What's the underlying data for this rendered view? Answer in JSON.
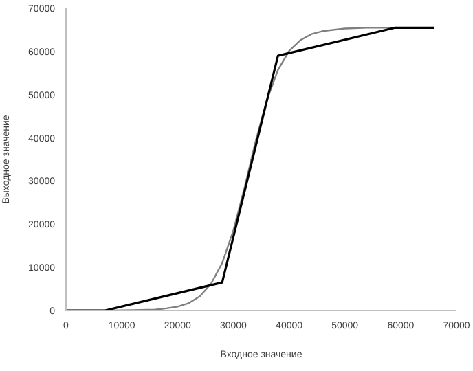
{
  "chart_data": {
    "type": "line",
    "xlabel": "Входное значение",
    "ylabel": "Выходное значение",
    "xlim": [
      0,
      70000
    ],
    "xticks": [
      0,
      10000,
      20000,
      30000,
      40000,
      50000,
      60000,
      70000
    ],
    "ylim": [
      0,
      70000
    ],
    "yticks": [
      0,
      10000,
      20000,
      30000,
      40000,
      50000,
      60000,
      70000
    ],
    "grid": false,
    "legend": false,
    "marker": "none",
    "line_style": "solid",
    "series": [
      {
        "color": "#808080",
        "x": [
          0,
          4000,
          8000,
          12000,
          16000,
          18000,
          20000,
          22000,
          24000,
          26000,
          28000,
          30000,
          32000,
          34000,
          36000,
          38000,
          40000,
          42000,
          44000,
          46000,
          50000,
          54000,
          58000,
          66000
        ],
        "values": [
          0,
          0,
          0,
          100,
          200,
          500,
          900,
          1700,
          3300,
          6200,
          11000,
          18500,
          28400,
          39200,
          48700,
          55700,
          60100,
          62600,
          64000,
          64700,
          65300,
          65500,
          65500,
          65500
        ]
      },
      {
        "color": "#000000",
        "x": [
          0,
          7000,
          28000,
          38000,
          59000,
          66000
        ],
        "values": [
          0,
          0,
          6500,
          59000,
          65500,
          65500
        ]
      }
    ]
  }
}
